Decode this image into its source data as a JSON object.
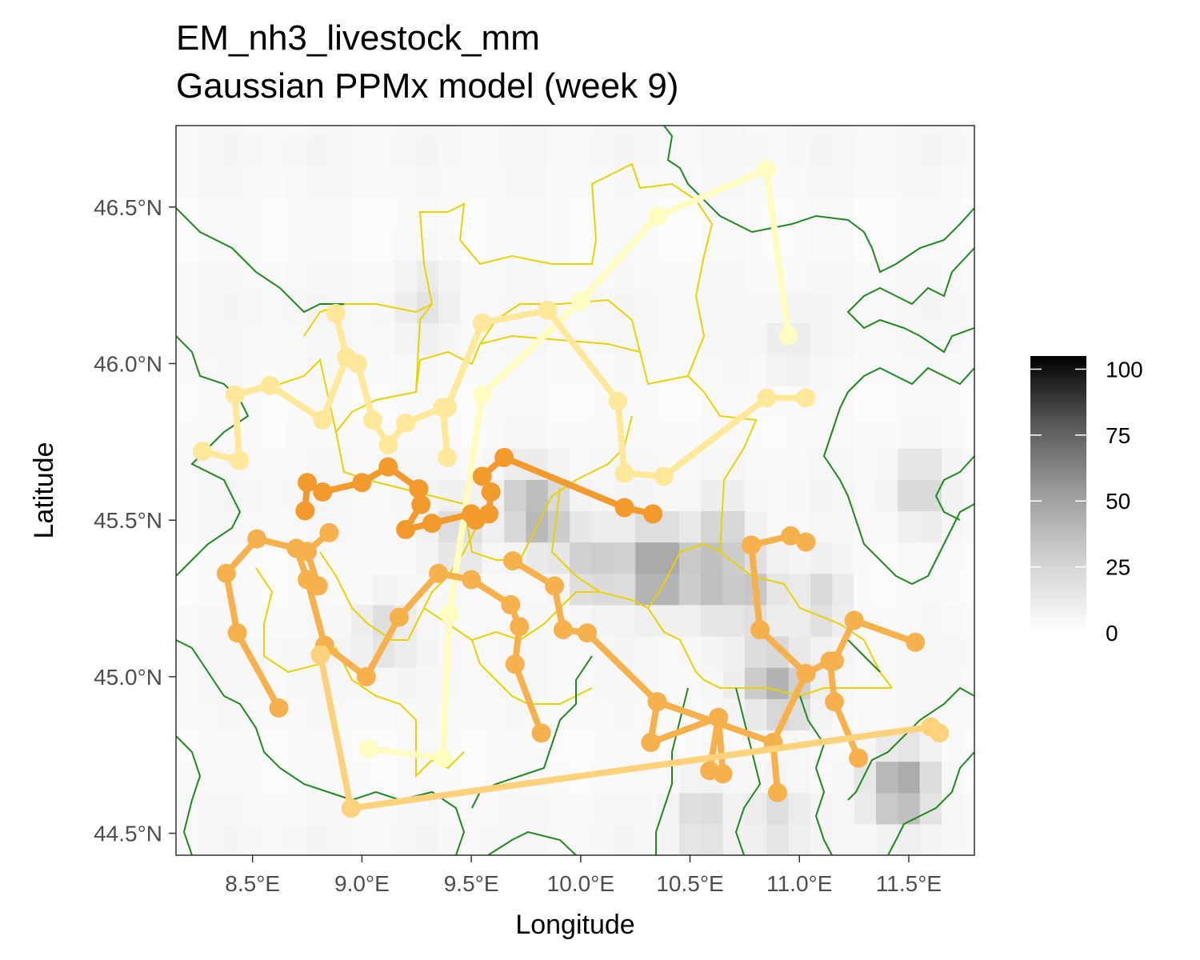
{
  "chart_data": {
    "type": "map",
    "title": "EM_nh3_livestock_mm",
    "subtitle": "Gaussian PPMx model (week 9)",
    "xlabel": "Longitude",
    "ylabel": "Latitude",
    "xlim": [
      8.15,
      11.8
    ],
    "ylim": [
      44.43,
      46.76
    ],
    "x_ticks": [
      8.5,
      9.0,
      9.5,
      10.0,
      10.5,
      11.0,
      11.5
    ],
    "x_tick_labels": [
      "8.5°E",
      "9.0°E",
      "9.5°E",
      "10.0°E",
      "10.5°E",
      "11.0°E",
      "11.5°E"
    ],
    "y_ticks": [
      44.5,
      45.0,
      45.5,
      46.0,
      46.5
    ],
    "y_tick_labels": [
      "44.5°N",
      "45.0°N",
      "45.5°N",
      "46.0°N",
      "46.5°N"
    ],
    "grid": false,
    "legend": {
      "position": "right",
      "range": [
        0,
        105
      ],
      "ticks": [
        0,
        25,
        50,
        75,
        100
      ],
      "tick_labels": [
        "0",
        "25",
        "50",
        "75",
        "100"
      ]
    },
    "heatmap_hotspots": [
      {
        "lon": 10.3,
        "lat": 45.35,
        "value": 30
      },
      {
        "lon": 10.4,
        "lat": 45.35,
        "value": 30
      },
      {
        "lon": 10.05,
        "lat": 45.35,
        "value": 22
      },
      {
        "lon": 9.85,
        "lat": 45.5,
        "value": 20
      },
      {
        "lon": 9.75,
        "lat": 45.55,
        "value": 18
      },
      {
        "lon": 10.6,
        "lat": 45.3,
        "value": 22
      },
      {
        "lon": 10.8,
        "lat": 45.28,
        "value": 20
      },
      {
        "lon": 10.85,
        "lat": 45.0,
        "value": 20
      },
      {
        "lon": 10.95,
        "lat": 44.95,
        "value": 18
      },
      {
        "lon": 11.5,
        "lat": 44.65,
        "value": 26
      },
      {
        "lon": 11.4,
        "lat": 44.65,
        "value": 18
      },
      {
        "lon": 11.55,
        "lat": 45.6,
        "value": 14
      },
      {
        "lon": 10.55,
        "lat": 44.55,
        "value": 14
      },
      {
        "lon": 10.9,
        "lat": 44.55,
        "value": 12
      },
      {
        "lon": 9.1,
        "lat": 45.15,
        "value": 12
      },
      {
        "lon": 9.45,
        "lat": 45.45,
        "value": 14
      },
      {
        "lon": 10.65,
        "lat": 45.45,
        "value": 16
      },
      {
        "lon": 11.1,
        "lat": 45.25,
        "value": 14
      },
      {
        "lon": 9.3,
        "lat": 46.2,
        "value": 8
      },
      {
        "lon": 10.95,
        "lat": 46.05,
        "value": 6
      }
    ],
    "series": [
      {
        "color": "#fffcc2",
        "points": [
          [
            9.03,
            44.77
          ],
          [
            9.37,
            44.74
          ],
          [
            9.4,
            45.2
          ],
          [
            9.55,
            45.9
          ],
          [
            10.0,
            46.2
          ],
          [
            10.35,
            46.47
          ],
          [
            10.85,
            46.62
          ],
          [
            10.95,
            46.09
          ]
        ]
      },
      {
        "color": "#ffe89a",
        "points": [
          [
            8.27,
            45.72
          ],
          [
            8.44,
            45.69
          ],
          [
            8.42,
            45.9
          ],
          [
            8.58,
            45.93
          ],
          [
            8.82,
            45.82
          ],
          [
            8.93,
            46.02
          ],
          [
            8.88,
            46.16
          ]
        ]
      },
      {
        "color": "#ffe89a",
        "points": [
          [
            8.98,
            46.0
          ],
          [
            9.05,
            45.82
          ],
          [
            9.12,
            45.74
          ],
          [
            9.2,
            45.81
          ],
          [
            9.37,
            45.86
          ],
          [
            9.39,
            45.7
          ]
        ]
      },
      {
        "color": "#ffe89a",
        "points": [
          [
            9.39,
            45.86
          ],
          [
            9.55,
            46.13
          ],
          [
            9.85,
            46.17
          ],
          [
            10.17,
            45.88
          ],
          [
            10.2,
            45.65
          ],
          [
            10.38,
            45.64
          ],
          [
            10.85,
            45.89
          ],
          [
            11.03,
            45.89
          ]
        ]
      },
      {
        "color": "#f39a2c",
        "points": [
          [
            8.74,
            45.53
          ],
          [
            8.75,
            45.62
          ],
          [
            8.82,
            45.59
          ],
          [
            9.0,
            45.62
          ],
          [
            9.12,
            45.67
          ],
          [
            9.26,
            45.6
          ],
          [
            9.27,
            45.55
          ],
          [
            9.2,
            45.47
          ],
          [
            9.32,
            45.49
          ],
          [
            9.5,
            45.52
          ],
          [
            9.52,
            45.5
          ],
          [
            9.58,
            45.52
          ],
          [
            9.59,
            45.59
          ],
          [
            9.55,
            45.64
          ],
          [
            9.65,
            45.7
          ],
          [
            10.2,
            45.54
          ],
          [
            10.33,
            45.52
          ]
        ]
      },
      {
        "color": "#f6b14c",
        "points": [
          [
            8.62,
            44.9
          ],
          [
            8.43,
            45.14
          ],
          [
            8.38,
            45.33
          ],
          [
            8.52,
            45.44
          ],
          [
            8.7,
            45.41
          ],
          [
            8.75,
            45.31
          ],
          [
            8.83,
            45.1
          ],
          [
            9.02,
            45.0
          ],
          [
            9.17,
            45.19
          ],
          [
            9.35,
            45.33
          ],
          [
            9.5,
            45.31
          ],
          [
            9.68,
            45.23
          ],
          [
            9.72,
            45.16
          ],
          [
            9.7,
            45.04
          ],
          [
            9.82,
            44.82
          ]
        ]
      },
      {
        "color": "#f6b14c",
        "points": [
          [
            8.85,
            45.46
          ],
          [
            8.75,
            45.4
          ],
          [
            8.8,
            45.29
          ]
        ]
      },
      {
        "color": "#f6b14c",
        "points": [
          [
            9.69,
            45.37
          ],
          [
            9.88,
            45.29
          ],
          [
            9.92,
            45.15
          ],
          [
            10.03,
            45.14
          ],
          [
            10.35,
            44.92
          ],
          [
            10.32,
            44.79
          ],
          [
            10.63,
            44.87
          ],
          [
            10.65,
            44.69
          ]
        ]
      },
      {
        "color": "#f6b14c",
        "points": [
          [
            10.35,
            44.92
          ],
          [
            10.88,
            44.79
          ],
          [
            10.9,
            44.63
          ]
        ]
      },
      {
        "color": "#f6b14c",
        "points": [
          [
            10.63,
            44.87
          ],
          [
            10.59,
            44.7
          ]
        ]
      },
      {
        "color": "#f6b14c",
        "points": [
          [
            10.78,
            45.42
          ],
          [
            10.82,
            45.15
          ],
          [
            11.03,
            45.01
          ],
          [
            11.14,
            45.05
          ],
          [
            11.16,
            44.92
          ],
          [
            11.27,
            44.74
          ]
        ]
      },
      {
        "color": "#f6b14c",
        "points": [
          [
            10.78,
            45.42
          ],
          [
            10.96,
            45.45
          ],
          [
            11.03,
            45.43
          ]
        ]
      },
      {
        "color": "#f6b14c",
        "points": [
          [
            10.88,
            44.79
          ],
          [
            11.03,
            45.01
          ]
        ]
      },
      {
        "color": "#f6b14c",
        "points": [
          [
            11.16,
            45.05
          ],
          [
            11.25,
            45.18
          ],
          [
            11.53,
            45.11
          ]
        ]
      },
      {
        "color": "#fdd27a",
        "points": [
          [
            8.81,
            45.07
          ],
          [
            8.95,
            44.58
          ],
          [
            11.6,
            44.84
          ],
          [
            11.64,
            44.82
          ]
        ]
      }
    ]
  }
}
